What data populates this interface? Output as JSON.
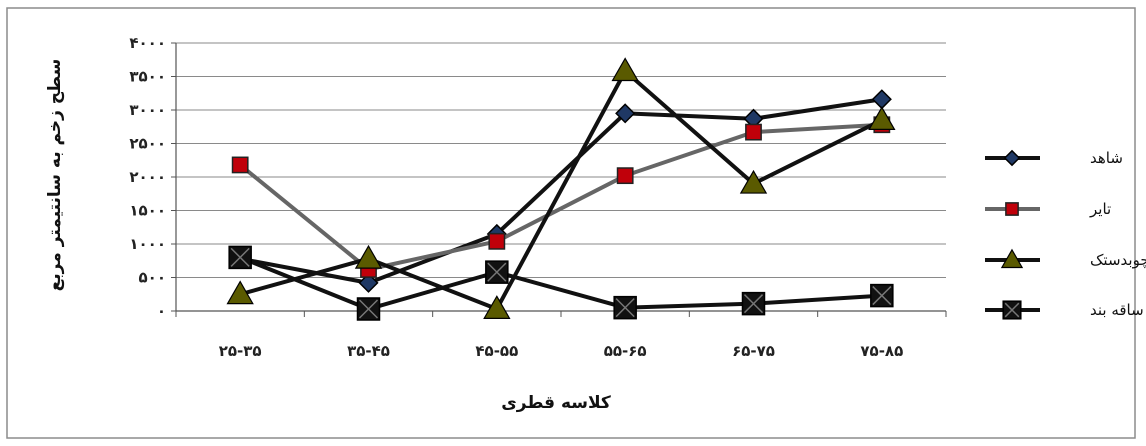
{
  "chart_data": {
    "type": "line",
    "categories": [
      "۲۵-۳۵",
      "۳۵-۴۵",
      "۴۵-۵۵",
      "۵۵-۶۵",
      "۶۵-۷۵",
      "۷۵-۸۵"
    ],
    "ylim": [
      0,
      4000
    ],
    "yticks": [
      {
        "value": 0,
        "label": "۰"
      },
      {
        "value": 500,
        "label": "۵۰۰"
      },
      {
        "value": 1000,
        "label": "۱۰۰۰"
      },
      {
        "value": 1500,
        "label": "۱۵۰۰"
      },
      {
        "value": 2000,
        "label": "۲۰۰۰"
      },
      {
        "value": 2500,
        "label": "۲۵۰۰"
      },
      {
        "value": 3000,
        "label": "۳۰۰۰"
      },
      {
        "value": 3500,
        "label": "۳۵۰۰"
      },
      {
        "value": 4000,
        "label": "۴۰۰۰"
      }
    ],
    "xlabel": "کلاسه قطری",
    "ylabel": "سطح زخم به سانتیمتر مربع",
    "grid": true,
    "legend_position": "right",
    "series": [
      {
        "name": "شاهد",
        "values": [
          780,
          420,
          1150,
          2950,
          2870,
          3160
        ],
        "color": "#111111",
        "marker": "diamond",
        "marker_color": "#1f3864"
      },
      {
        "name": "تایر",
        "values": [
          2180,
          620,
          1040,
          2020,
          2670,
          2780
        ],
        "color": "#666666",
        "marker": "square",
        "marker_color": "#c0000a"
      },
      {
        "name": "چوبدستک",
        "values": [
          250,
          780,
          30,
          3580,
          1900,
          2850
        ],
        "color": "#111111",
        "marker": "triangle",
        "marker_color": "#5a5a00"
      },
      {
        "name": "ساقه بند",
        "values": [
          800,
          30,
          580,
          50,
          110,
          230
        ],
        "color": "#111111",
        "marker": "x-square",
        "marker_color": "#111111"
      }
    ]
  }
}
